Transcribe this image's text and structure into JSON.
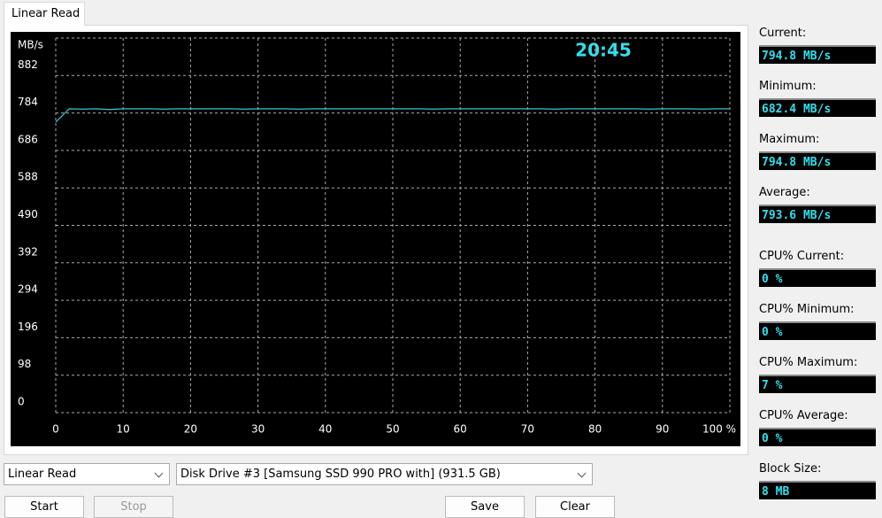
{
  "tab": "Linear Read",
  "chart_data": {
    "type": "line",
    "ylabel": "MB/s",
    "annotation": "20:45",
    "x": [
      0,
      2,
      4,
      6,
      8,
      10,
      12,
      14,
      16,
      18,
      20,
      22,
      24,
      26,
      28,
      30,
      32,
      34,
      36,
      38,
      40,
      42,
      44,
      46,
      48,
      50,
      52,
      54,
      56,
      58,
      60,
      62,
      64,
      66,
      68,
      70,
      72,
      74,
      76,
      78,
      80,
      82,
      84,
      86,
      88,
      90,
      92,
      94,
      96,
      98,
      100
    ],
    "series": [
      {
        "color": "#2fc6d6",
        "values": [
          760,
          795,
          794,
          795,
          793,
          795,
          795,
          795,
          794,
          795,
          795,
          795,
          795,
          795,
          794,
          795,
          795,
          795,
          794,
          795,
          795,
          795,
          795,
          795,
          795,
          795,
          795,
          795,
          794,
          795,
          795,
          795,
          795,
          795,
          795,
          795,
          795,
          794,
          795,
          795,
          795,
          795,
          795,
          795,
          794,
          795,
          795,
          795,
          794,
          795,
          795
        ]
      }
    ],
    "xlim": [
      0,
      100
    ],
    "xticks": [
      0,
      10,
      20,
      30,
      40,
      50,
      60,
      70,
      80,
      90,
      {
        "value": 100,
        "label": "100 %"
      }
    ],
    "ylim": [
      0,
      980
    ],
    "yticks": [
      0,
      98,
      196,
      294,
      392,
      490,
      588,
      686,
      784,
      882
    ],
    "grid": true
  },
  "stats": [
    {
      "label": "Current:",
      "value": "794.8 MB/s"
    },
    {
      "label": "Minimum:",
      "value": "682.4 MB/s"
    },
    {
      "label": "Maximum:",
      "value": "794.8 MB/s"
    },
    {
      "label": "Average:",
      "value": "793.6 MB/s"
    },
    {
      "label": "CPU% Current:",
      "value": "0 %"
    },
    {
      "label": "CPU% Minimum:",
      "value": "0 %"
    },
    {
      "label": "CPU% Maximum:",
      "value": "7 %"
    },
    {
      "label": "CPU% Average:",
      "value": "0 %"
    },
    {
      "label": "Block Size:",
      "value": "8 MB"
    }
  ],
  "controls": {
    "mode": "Linear Read",
    "drive": "Disk Drive #3  [Samsung SSD 990 PRO with]  (931.5 GB)",
    "buttons": [
      "Start",
      "Stop",
      "Save",
      "Clear"
    ]
  }
}
